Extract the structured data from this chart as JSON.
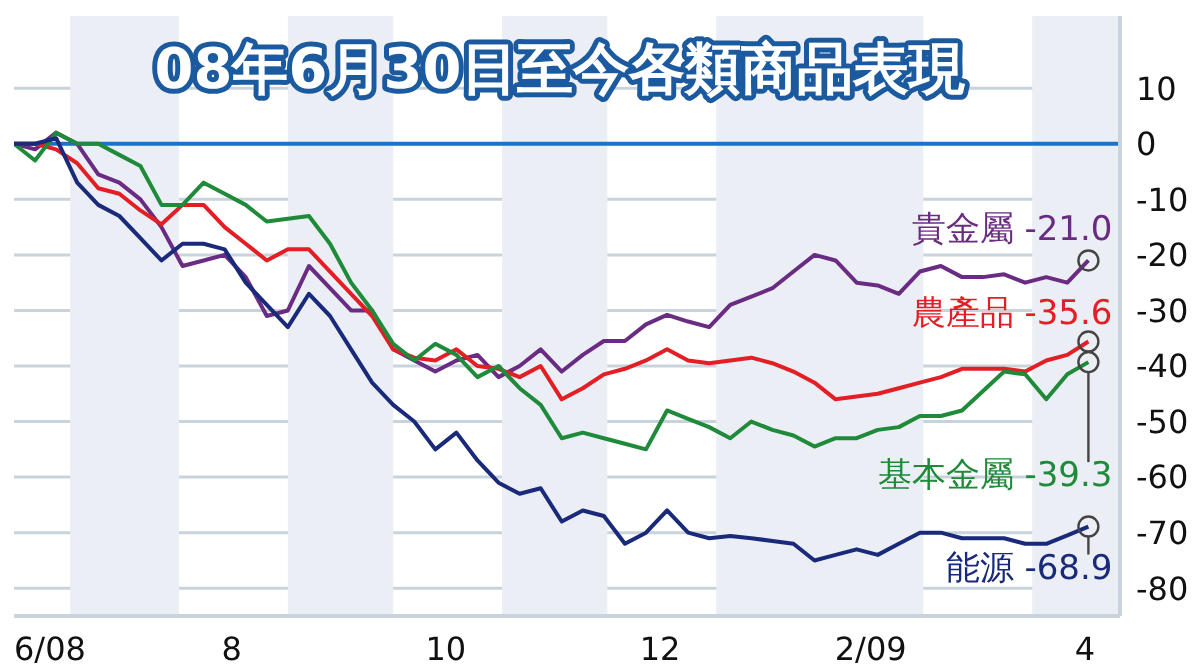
{
  "chart_data": {
    "type": "line",
    "title": "08年6月30日至今各類商品表現",
    "x": [
      "2008-06-15",
      "2008-06-21",
      "2008-06-27",
      "2008-07-03",
      "2008-07-09",
      "2008-07-15",
      "2008-07-21",
      "2008-07-27",
      "2008-08-02",
      "2008-08-08",
      "2008-08-14",
      "2008-08-20",
      "2008-08-26",
      "2008-09-01",
      "2008-09-07",
      "2008-09-13",
      "2008-09-19",
      "2008-09-25",
      "2008-10-01",
      "2008-10-07",
      "2008-10-13",
      "2008-10-19",
      "2008-10-25",
      "2008-10-31",
      "2008-11-06",
      "2008-11-12",
      "2008-11-18",
      "2008-11-24",
      "2008-11-30",
      "2008-12-06",
      "2008-12-12",
      "2008-12-18",
      "2008-12-24",
      "2008-12-30",
      "2009-01-05",
      "2009-01-11",
      "2009-01-17",
      "2009-01-23",
      "2009-01-29",
      "2009-02-04",
      "2009-02-10",
      "2009-02-16",
      "2009-02-22",
      "2009-02-28",
      "2009-03-06",
      "2009-03-12",
      "2009-03-18",
      "2009-03-24",
      "2009-03-30",
      "2009-04-05",
      "2009-04-11",
      "2009-04-17"
    ],
    "series": [
      {
        "color": "#6a2c82",
        "values": [
          0,
          -1,
          2,
          0,
          -5.5,
          -7,
          -10,
          -15,
          -22,
          -21,
          -20,
          -24,
          -31,
          -30,
          -22,
          -26,
          -30,
          -30,
          -37,
          -39,
          -41,
          -39,
          -38,
          -42,
          -40,
          -37,
          -41,
          -38,
          -35.5,
          -35.5,
          -32.5,
          -30.8,
          -32,
          -33,
          -29,
          -27.5,
          -26,
          -23,
          -20,
          -21,
          -25,
          -25.5,
          -27,
          -23,
          -22,
          -24,
          -24,
          -23.5,
          -25,
          -24,
          -25,
          -21.0
        ]
      },
      {
        "color": "#e31e24",
        "values": [
          0,
          0,
          -1,
          -3.5,
          -8,
          -9,
          -12,
          -14.5,
          -11,
          -11,
          -15,
          -18,
          -21,
          -19,
          -19,
          -23,
          -27,
          -31,
          -37,
          -38.5,
          -39,
          -37,
          -40,
          -40.5,
          -42,
          -40,
          -46,
          -44,
          -41.5,
          -40.5,
          -39,
          -37,
          -39,
          -39.5,
          -39,
          -38.5,
          -39.5,
          -41,
          -43,
          -46,
          -45.5,
          -45,
          -44,
          -43,
          -42,
          -40.5,
          -40.5,
          -40.5,
          -41,
          -39,
          -38,
          -35.6
        ]
      },
      {
        "color": "#1f8a3a",
        "values": [
          0,
          -3,
          2,
          0,
          0,
          -2,
          -4,
          -11,
          -11,
          -7,
          -9,
          -11,
          -14,
          -13.5,
          -13,
          -18,
          -25,
          -30,
          -36,
          -39,
          -36,
          -38,
          -42,
          -40,
          -44,
          -47,
          -53,
          -52,
          -53,
          -54,
          -55,
          -48,
          -49.5,
          -51,
          -53,
          -50,
          -51.5,
          -52.5,
          -54.5,
          -53,
          -53,
          -51.5,
          -51,
          -49,
          -49,
          -48,
          -44.5,
          -41,
          -41.5,
          -46,
          -41.5,
          -39.3
        ]
      },
      {
        "color": "#1a2a7a",
        "values": [
          0,
          0,
          1,
          -7,
          -11,
          -13,
          -17,
          -21,
          -18,
          -18,
          -19,
          -25,
          -29,
          -33,
          -27,
          -31,
          -37,
          -43,
          -47,
          -50,
          -55,
          -52,
          -57,
          -61,
          -63,
          -62,
          -68,
          -66,
          -67,
          -72,
          -70,
          -66,
          -70,
          -71,
          -70.6,
          -71,
          -71.5,
          -72,
          -75,
          -74,
          -73,
          -74,
          -72,
          -70,
          -70,
          -71,
          -71,
          -71,
          -72,
          -72,
          -70.5,
          -68.9
        ]
      }
    ],
    "xlim": [
      "2008-06-15",
      "2009-04-26"
    ],
    "xticks": [
      {
        "value": "2008-06-15",
        "label": "6/08"
      },
      {
        "value": "2008-08-16",
        "label": "8"
      },
      {
        "value": "2008-10-16",
        "label": "10"
      },
      {
        "value": "2008-12-16",
        "label": "12"
      },
      {
        "value": "2009-02-14",
        "label": "2/09"
      },
      {
        "value": "2009-04-16",
        "label": "4"
      }
    ],
    "ylim": [
      -85,
      23
    ],
    "yticks": [
      10,
      0,
      -10,
      -20,
      -30,
      -40,
      -50,
      -60,
      -70,
      -80
    ],
    "grid": "y",
    "legend": false,
    "marker": "none",
    "line_style": "solid",
    "ref_lines": [
      {
        "axis": "y",
        "value": 0,
        "color": "#1a73c8"
      }
    ],
    "bands": [
      {
        "axis": "x",
        "from": "2008-07-01",
        "to": "2008-08-01",
        "color": "#eceef5"
      },
      {
        "axis": "x",
        "from": "2008-09-01",
        "to": "2008-10-01",
        "color": "#eceef5"
      },
      {
        "axis": "x",
        "from": "2008-11-01",
        "to": "2008-12-01",
        "color": "#eceef5"
      },
      {
        "axis": "x",
        "from": "2009-01-01",
        "to": "2009-03-01",
        "color": "#eceef5"
      },
      {
        "axis": "x",
        "from": "2009-04-01",
        "to": "2009-04-26",
        "color": "#eceef5"
      }
    ],
    "annotations": [
      {
        "text": "貴金屬 -21.0",
        "x": "2009-04-17",
        "y": -21.0
      },
      {
        "text": "農產品 -35.6",
        "x": "2009-04-17",
        "y": -35.6
      },
      {
        "text": "基本金屬 -39.3",
        "x": "2009-04-17",
        "y": -39.3
      },
      {
        "text": "能源 -68.9",
        "x": "2009-04-17",
        "y": -68.9
      }
    ]
  }
}
